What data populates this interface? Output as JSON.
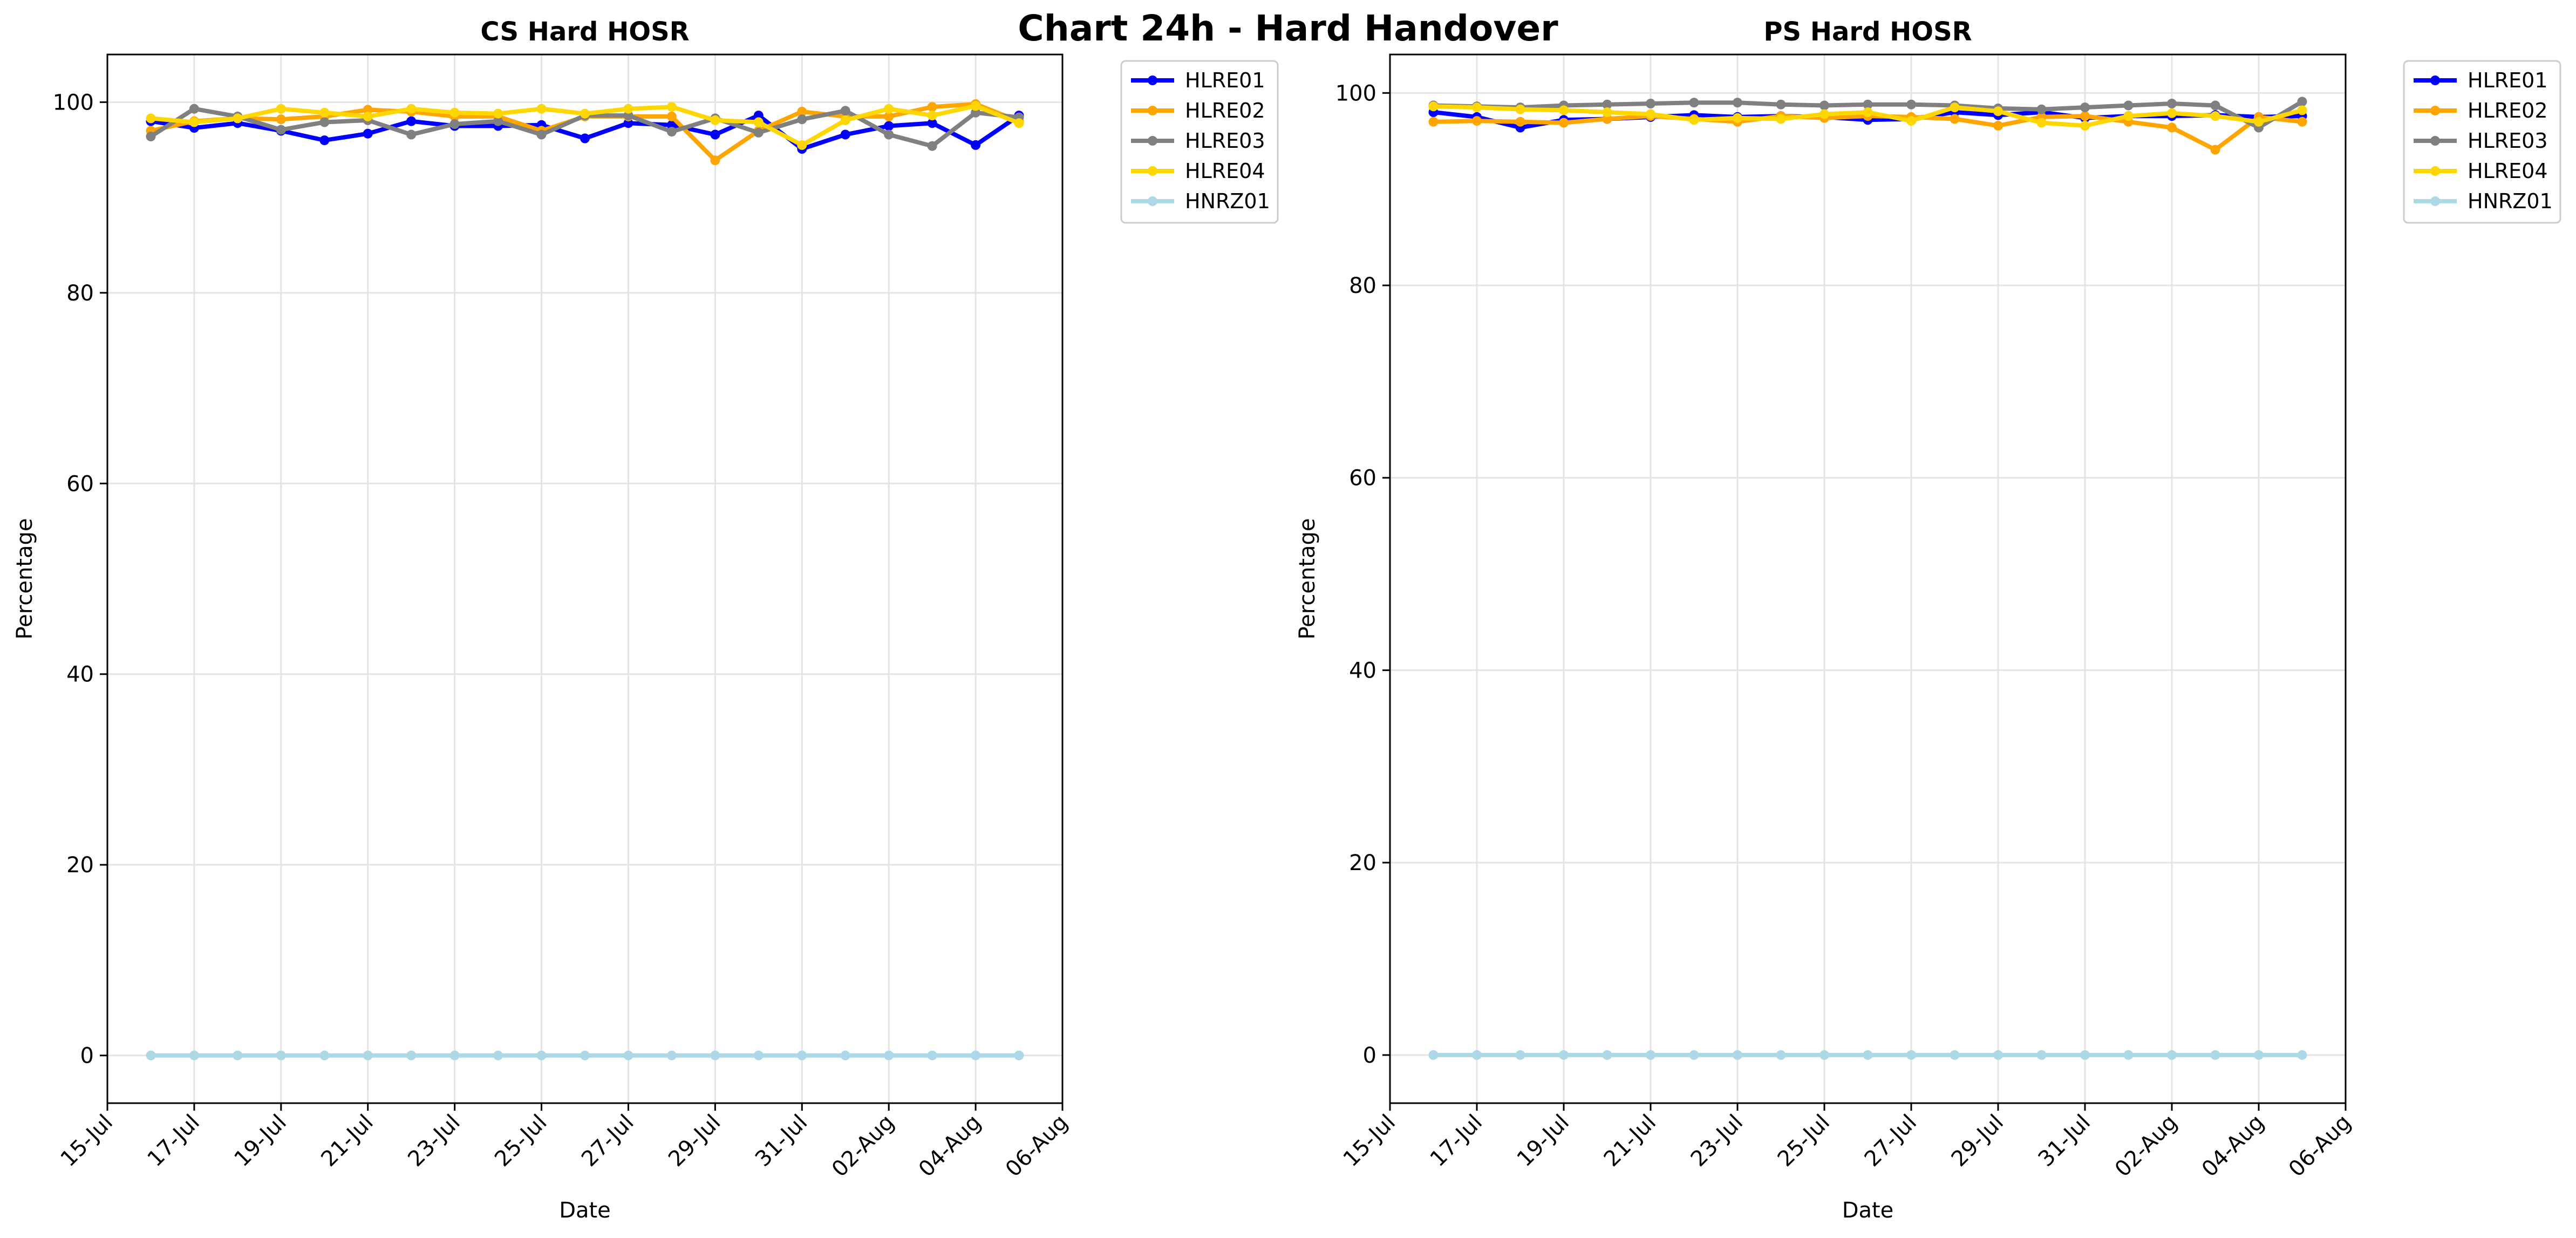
{
  "figure_title": "Chart 24h - Hard Handover",
  "colors": {
    "HLRE01": "#0000ff",
    "HLRE02": "#ffa500",
    "HLRE03": "#808080",
    "HLRE04": "#ffd700",
    "HNRZ01": "#add8e6"
  },
  "chart_data": [
    {
      "type": "line",
      "title": "CS Hard HOSR",
      "xlabel": "Date",
      "ylabel": "Percentage",
      "xlim": [
        "2024-07-15",
        "2024-08-06"
      ],
      "ylim": [
        -5,
        105
      ],
      "xticks": [
        "15-Jul",
        "17-Jul",
        "19-Jul",
        "21-Jul",
        "23-Jul",
        "25-Jul",
        "27-Jul",
        "29-Jul",
        "31-Jul",
        "02-Aug",
        "04-Aug",
        "06-Aug"
      ],
      "yticks": [
        0,
        20,
        40,
        60,
        80,
        100
      ],
      "grid": true,
      "legend_position": "outside top-right",
      "x": [
        "2024-07-16",
        "2024-07-17",
        "2024-07-18",
        "2024-07-19",
        "2024-07-20",
        "2024-07-21",
        "2024-07-22",
        "2024-07-23",
        "2024-07-24",
        "2024-07-25",
        "2024-07-26",
        "2024-07-27",
        "2024-07-28",
        "2024-07-29",
        "2024-07-30",
        "2024-07-31",
        "2024-08-01",
        "2024-08-02",
        "2024-08-03",
        "2024-08-04",
        "2024-08-05"
      ],
      "series": [
        {
          "name": "HLRE01",
          "values": [
            98.0,
            97.3,
            97.8,
            97.0,
            96.0,
            96.7,
            98.0,
            97.5,
            97.5,
            97.6,
            96.2,
            97.8,
            97.6,
            96.6,
            98.6,
            95.1,
            96.6,
            97.5,
            97.8,
            95.5,
            98.6
          ]
        },
        {
          "name": "HLRE02",
          "values": [
            97.0,
            98.0,
            98.3,
            98.2,
            98.5,
            99.2,
            99.0,
            98.5,
            98.5,
            97.0,
            98.5,
            98.5,
            98.5,
            93.9,
            97.0,
            99.0,
            98.5,
            98.5,
            99.5,
            99.8,
            98.0
          ]
        },
        {
          "name": "HLRE03",
          "values": [
            96.4,
            99.3,
            98.5,
            97.1,
            97.9,
            98.1,
            96.6,
            97.7,
            98.0,
            96.6,
            98.6,
            98.6,
            96.9,
            98.3,
            96.8,
            98.2,
            99.1,
            96.6,
            95.4,
            98.9,
            98.4
          ]
        },
        {
          "name": "HLRE04",
          "values": [
            98.3,
            97.9,
            98.3,
            99.3,
            98.9,
            98.5,
            99.3,
            98.9,
            98.8,
            99.3,
            98.8,
            99.3,
            99.5,
            98.1,
            97.9,
            95.5,
            98.1,
            99.3,
            98.6,
            99.6,
            97.8
          ]
        },
        {
          "name": "HNRZ01",
          "values": [
            0,
            0,
            0,
            0,
            0,
            0,
            0,
            0,
            0,
            0,
            0,
            0,
            0,
            0,
            0,
            0,
            0,
            0,
            0,
            0,
            0
          ]
        }
      ]
    },
    {
      "type": "line",
      "title": "PS Hard HOSR",
      "xlabel": "Date",
      "ylabel": "Percentage",
      "xlim": [
        "2024-07-15",
        "2024-08-06"
      ],
      "ylim": [
        -5,
        104
      ],
      "xticks": [
        "15-Jul",
        "17-Jul",
        "19-Jul",
        "21-Jul",
        "23-Jul",
        "25-Jul",
        "27-Jul",
        "29-Jul",
        "31-Jul",
        "02-Aug",
        "04-Aug",
        "06-Aug"
      ],
      "yticks": [
        0,
        20,
        40,
        60,
        80,
        100
      ],
      "grid": true,
      "legend_position": "outside top-right",
      "x": [
        "2024-07-16",
        "2024-07-17",
        "2024-07-18",
        "2024-07-19",
        "2024-07-20",
        "2024-07-21",
        "2024-07-22",
        "2024-07-23",
        "2024-07-24",
        "2024-07-25",
        "2024-07-26",
        "2024-07-27",
        "2024-07-28",
        "2024-07-29",
        "2024-07-30",
        "2024-07-31",
        "2024-08-01",
        "2024-08-02",
        "2024-08-03",
        "2024-08-04",
        "2024-08-05"
      ],
      "series": [
        {
          "name": "HLRE01",
          "values": [
            98.0,
            97.5,
            96.4,
            97.2,
            97.3,
            97.5,
            97.7,
            97.5,
            97.6,
            97.5,
            97.2,
            97.3,
            98.0,
            97.7,
            98.0,
            97.4,
            97.6,
            97.6,
            97.7,
            97.5,
            97.6
          ]
        },
        {
          "name": "HLRE02",
          "values": [
            97.0,
            97.1,
            97.0,
            96.9,
            97.3,
            97.6,
            97.3,
            97.0,
            97.6,
            97.4,
            97.6,
            97.5,
            97.3,
            96.6,
            97.5,
            97.6,
            97.0,
            96.4,
            94.1,
            97.5,
            97.0
          ]
        },
        {
          "name": "HLRE03",
          "values": [
            98.7,
            98.6,
            98.5,
            98.7,
            98.8,
            98.9,
            99.0,
            99.0,
            98.8,
            98.7,
            98.8,
            98.8,
            98.7,
            98.4,
            98.3,
            98.5,
            98.7,
            98.9,
            98.7,
            96.4,
            99.1
          ]
        },
        {
          "name": "HLRE04",
          "values": [
            98.6,
            98.5,
            98.3,
            98.2,
            98.0,
            97.8,
            97.2,
            97.4,
            97.3,
            97.8,
            98.0,
            97.1,
            98.5,
            98.1,
            96.9,
            96.6,
            97.6,
            97.9,
            97.6,
            97.0,
            98.2
          ]
        },
        {
          "name": "HNRZ01",
          "values": [
            0,
            0,
            0,
            0,
            0,
            0,
            0,
            0,
            0,
            0,
            0,
            0,
            0,
            0,
            0,
            0,
            0,
            0,
            0,
            0,
            0
          ]
        }
      ]
    }
  ]
}
